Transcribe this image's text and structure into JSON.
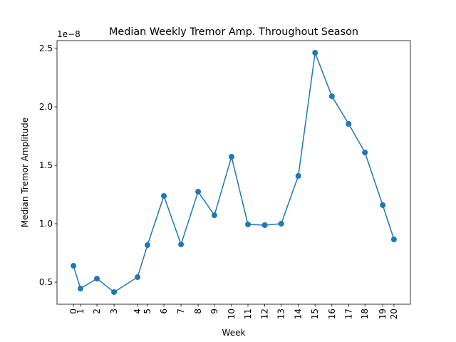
{
  "chart_data": {
    "type": "line",
    "title": "Median Weekly Tremor Amp. Throughout Season",
    "x_label": "Week",
    "y_label": "Median Tremor Amplitude",
    "y_offset_text": "1e−8",
    "x": [
      0.6,
      1.02,
      2.0,
      3.02,
      4.42,
      5.01,
      5.99,
      7.01,
      8.03,
      9.0,
      10.02,
      11.0,
      12.0,
      12.98,
      14.0,
      15.0,
      16.0,
      17.0,
      17.97,
      19.03,
      19.7
    ],
    "series": [
      {
        "name": "Median Tremor Amplitude",
        "color": "#1f77b4",
        "values": [
          0.64,
          0.445,
          0.53,
          0.415,
          0.543,
          0.817,
          1.238,
          0.823,
          1.274,
          1.073,
          1.573,
          0.994,
          0.988,
          1.0,
          1.409,
          2.463,
          2.091,
          1.854,
          1.61,
          1.159,
          0.866
        ]
      }
    ],
    "xlim": [
      -0.38,
      20.68
    ],
    "xticks": [
      {
        "value": 0.6,
        "label": "0"
      },
      {
        "value": 1.02,
        "label": "1"
      },
      {
        "value": 2.0,
        "label": "2"
      },
      {
        "value": 3.02,
        "label": "3"
      },
      {
        "value": 4.42,
        "label": "4"
      },
      {
        "value": 5.01,
        "label": "5"
      },
      {
        "value": 5.99,
        "label": "6"
      },
      {
        "value": 7.01,
        "label": "7"
      },
      {
        "value": 8.03,
        "label": "8"
      },
      {
        "value": 9.0,
        "label": "9"
      },
      {
        "value": 10.02,
        "label": "10"
      },
      {
        "value": 11.0,
        "label": "11"
      },
      {
        "value": 12.0,
        "label": "12"
      },
      {
        "value": 12.98,
        "label": "13"
      },
      {
        "value": 14.0,
        "label": "14"
      },
      {
        "value": 15.0,
        "label": "15"
      },
      {
        "value": 16.0,
        "label": "16"
      },
      {
        "value": 17.0,
        "label": "17"
      },
      {
        "value": 17.97,
        "label": "18"
      },
      {
        "value": 19.03,
        "label": "19"
      },
      {
        "value": 19.7,
        "label": "20"
      }
    ],
    "ylim": [
      0.311,
      2.567
    ],
    "yticks": [
      0.5,
      {
        "value": 1,
        "label": "1.0"
      },
      1.5,
      {
        "value": 2,
        "label": "2.0"
      },
      2.5
    ]
  }
}
